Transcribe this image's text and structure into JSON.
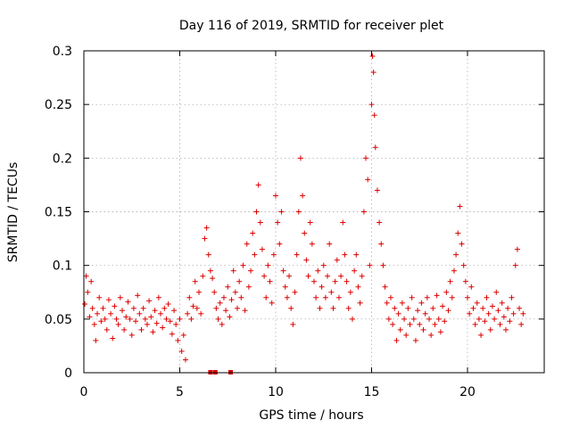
{
  "chart_data": {
    "type": "scatter",
    "title": "Day 116 of 2019, SRMTID for receiver plet",
    "xlabel": "GPS time / hours",
    "ylabel": "SRMTID / TECUs",
    "xlim": [
      0,
      24
    ],
    "ylim": [
      0,
      0.3
    ],
    "x_ticks": [
      0,
      5,
      10,
      15,
      20
    ],
    "x_tick_labels": [
      "0",
      "5",
      "10",
      "15",
      "20"
    ],
    "y_ticks": [
      0,
      0.05,
      0.1,
      0.15,
      0.2,
      0.25,
      0.3
    ],
    "y_tick_labels": [
      "0",
      "0.05",
      "0.1",
      "0.15",
      "0.2",
      "0.25",
      "0.3"
    ],
    "grid": true,
    "marker": "+",
    "color": "#dd0000",
    "series": [
      {
        "name": "SRMTID",
        "points": [
          [
            0.05,
            0.064
          ],
          [
            0.12,
            0.09
          ],
          [
            0.2,
            0.075
          ],
          [
            0.3,
            0.052
          ],
          [
            0.38,
            0.085
          ],
          [
            0.45,
            0.06
          ],
          [
            0.55,
            0.045
          ],
          [
            0.62,
            0.03
          ],
          [
            0.7,
            0.055
          ],
          [
            0.8,
            0.07
          ],
          [
            0.9,
            0.048
          ],
          [
            1.0,
            0.06
          ],
          [
            1.1,
            0.05
          ],
          [
            1.2,
            0.04
          ],
          [
            1.3,
            0.068
          ],
          [
            1.4,
            0.055
          ],
          [
            1.5,
            0.032
          ],
          [
            1.6,
            0.062
          ],
          [
            1.7,
            0.05
          ],
          [
            1.8,
            0.045
          ],
          [
            1.9,
            0.07
          ],
          [
            2.0,
            0.058
          ],
          [
            2.1,
            0.04
          ],
          [
            2.2,
            0.052
          ],
          [
            2.3,
            0.066
          ],
          [
            2.4,
            0.05
          ],
          [
            2.5,
            0.035
          ],
          [
            2.6,
            0.06
          ],
          [
            2.7,
            0.048
          ],
          [
            2.8,
            0.072
          ],
          [
            2.9,
            0.055
          ],
          [
            3.0,
            0.04
          ],
          [
            3.1,
            0.06
          ],
          [
            3.2,
            0.05
          ],
          [
            3.3,
            0.045
          ],
          [
            3.4,
            0.067
          ],
          [
            3.5,
            0.052
          ],
          [
            3.6,
            0.038
          ],
          [
            3.7,
            0.058
          ],
          [
            3.8,
            0.046
          ],
          [
            3.9,
            0.07
          ],
          [
            4.0,
            0.055
          ],
          [
            4.1,
            0.042
          ],
          [
            4.2,
            0.06
          ],
          [
            4.3,
            0.05
          ],
          [
            4.4,
            0.064
          ],
          [
            4.5,
            0.048
          ],
          [
            4.6,
            0.036
          ],
          [
            4.7,
            0.058
          ],
          [
            4.8,
            0.045
          ],
          [
            4.9,
            0.03
          ],
          [
            5.0,
            0.05
          ],
          [
            5.1,
            0.02
          ],
          [
            5.2,
            0.035
          ],
          [
            5.3,
            0.012
          ],
          [
            5.4,
            0.055
          ],
          [
            5.5,
            0.07
          ],
          [
            5.6,
            0.05
          ],
          [
            5.7,
            0.062
          ],
          [
            5.8,
            0.085
          ],
          [
            5.9,
            0.06
          ],
          [
            6.0,
            0.075
          ],
          [
            6.1,
            0.055
          ],
          [
            6.2,
            0.09
          ],
          [
            6.3,
            0.125
          ],
          [
            6.4,
            0.135
          ],
          [
            6.5,
            0.11
          ],
          [
            6.6,
            0.095
          ],
          [
            6.7,
            0.088
          ],
          [
            6.8,
            0.075
          ],
          [
            6.9,
            0.06
          ],
          [
            7.0,
            0.05
          ],
          [
            7.1,
            0.065
          ],
          [
            7.2,
            0.045
          ],
          [
            7.3,
            0.07
          ],
          [
            7.4,
            0.058
          ],
          [
            7.5,
            0.08
          ],
          [
            7.6,
            0.052
          ],
          [
            7.7,
            0.068
          ],
          [
            7.8,
            0.095
          ],
          [
            7.9,
            0.075
          ],
          [
            8.0,
            0.06
          ],
          [
            8.1,
            0.085
          ],
          [
            8.2,
            0.07
          ],
          [
            8.3,
            0.1
          ],
          [
            8.4,
            0.058
          ],
          [
            8.5,
            0.12
          ],
          [
            8.6,
            0.08
          ],
          [
            8.7,
            0.095
          ],
          [
            8.8,
            0.13
          ],
          [
            8.9,
            0.11
          ],
          [
            9.0,
            0.15
          ],
          [
            9.1,
            0.175
          ],
          [
            9.2,
            0.14
          ],
          [
            9.3,
            0.115
          ],
          [
            9.4,
            0.09
          ],
          [
            9.5,
            0.07
          ],
          [
            9.6,
            0.1
          ],
          [
            9.7,
            0.085
          ],
          [
            9.8,
            0.065
          ],
          [
            9.9,
            0.11
          ],
          [
            10.0,
            0.165
          ],
          [
            10.1,
            0.14
          ],
          [
            10.2,
            0.12
          ],
          [
            10.3,
            0.15
          ],
          [
            10.4,
            0.095
          ],
          [
            10.5,
            0.08
          ],
          [
            10.6,
            0.07
          ],
          [
            10.7,
            0.09
          ],
          [
            10.8,
            0.06
          ],
          [
            10.9,
            0.045
          ],
          [
            11.0,
            0.075
          ],
          [
            11.1,
            0.11
          ],
          [
            11.2,
            0.15
          ],
          [
            11.3,
            0.2
          ],
          [
            11.4,
            0.165
          ],
          [
            11.5,
            0.13
          ],
          [
            11.6,
            0.105
          ],
          [
            11.7,
            0.09
          ],
          [
            11.8,
            0.14
          ],
          [
            11.9,
            0.12
          ],
          [
            12.0,
            0.085
          ],
          [
            12.1,
            0.07
          ],
          [
            12.2,
            0.095
          ],
          [
            12.3,
            0.06
          ],
          [
            12.4,
            0.08
          ],
          [
            12.5,
            0.1
          ],
          [
            12.6,
            0.07
          ],
          [
            12.7,
            0.09
          ],
          [
            12.8,
            0.12
          ],
          [
            12.9,
            0.075
          ],
          [
            13.0,
            0.06
          ],
          [
            13.1,
            0.085
          ],
          [
            13.2,
            0.105
          ],
          [
            13.3,
            0.07
          ],
          [
            13.4,
            0.09
          ],
          [
            13.5,
            0.14
          ],
          [
            13.6,
            0.11
          ],
          [
            13.7,
            0.085
          ],
          [
            13.8,
            0.06
          ],
          [
            13.9,
            0.075
          ],
          [
            14.0,
            0.05
          ],
          [
            14.1,
            0.095
          ],
          [
            14.2,
            0.11
          ],
          [
            14.3,
            0.08
          ],
          [
            14.4,
            0.065
          ],
          [
            14.5,
            0.09
          ],
          [
            14.6,
            0.15
          ],
          [
            14.7,
            0.2
          ],
          [
            14.8,
            0.18
          ],
          [
            14.9,
            0.1
          ],
          [
            15.0,
            0.25
          ],
          [
            15.05,
            0.295
          ],
          [
            15.1,
            0.28
          ],
          [
            15.15,
            0.24
          ],
          [
            15.2,
            0.21
          ],
          [
            15.3,
            0.17
          ],
          [
            15.4,
            0.14
          ],
          [
            15.5,
            0.12
          ],
          [
            15.6,
            0.1
          ],
          [
            15.7,
            0.08
          ],
          [
            15.8,
            0.065
          ],
          [
            15.9,
            0.05
          ],
          [
            16.0,
            0.07
          ],
          [
            16.1,
            0.045
          ],
          [
            16.2,
            0.06
          ],
          [
            16.3,
            0.03
          ],
          [
            16.4,
            0.055
          ],
          [
            16.5,
            0.04
          ],
          [
            16.6,
            0.065
          ],
          [
            16.7,
            0.05
          ],
          [
            16.8,
            0.035
          ],
          [
            16.9,
            0.06
          ],
          [
            17.0,
            0.045
          ],
          [
            17.1,
            0.07
          ],
          [
            17.2,
            0.05
          ],
          [
            17.3,
            0.03
          ],
          [
            17.4,
            0.058
          ],
          [
            17.5,
            0.045
          ],
          [
            17.6,
            0.065
          ],
          [
            17.7,
            0.04
          ],
          [
            17.8,
            0.055
          ],
          [
            17.9,
            0.07
          ],
          [
            18.0,
            0.05
          ],
          [
            18.1,
            0.035
          ],
          [
            18.2,
            0.06
          ],
          [
            18.3,
            0.045
          ],
          [
            18.4,
            0.072
          ],
          [
            18.5,
            0.05
          ],
          [
            18.6,
            0.038
          ],
          [
            18.7,
            0.062
          ],
          [
            18.8,
            0.048
          ],
          [
            18.9,
            0.075
          ],
          [
            19.0,
            0.058
          ],
          [
            19.1,
            0.085
          ],
          [
            19.2,
            0.07
          ],
          [
            19.3,
            0.095
          ],
          [
            19.4,
            0.11
          ],
          [
            19.5,
            0.13
          ],
          [
            19.6,
            0.155
          ],
          [
            19.7,
            0.12
          ],
          [
            19.8,
            0.1
          ],
          [
            19.9,
            0.085
          ],
          [
            20.0,
            0.07
          ],
          [
            20.1,
            0.055
          ],
          [
            20.2,
            0.08
          ],
          [
            20.3,
            0.06
          ],
          [
            20.4,
            0.045
          ],
          [
            20.5,
            0.065
          ],
          [
            20.6,
            0.05
          ],
          [
            20.7,
            0.035
          ],
          [
            20.8,
            0.06
          ],
          [
            20.9,
            0.048
          ],
          [
            21.0,
            0.07
          ],
          [
            21.1,
            0.055
          ],
          [
            21.2,
            0.04
          ],
          [
            21.3,
            0.062
          ],
          [
            21.4,
            0.05
          ],
          [
            21.5,
            0.075
          ],
          [
            21.6,
            0.058
          ],
          [
            21.7,
            0.045
          ],
          [
            21.8,
            0.065
          ],
          [
            21.9,
            0.052
          ],
          [
            22.0,
            0.04
          ],
          [
            22.1,
            0.06
          ],
          [
            22.2,
            0.048
          ],
          [
            22.3,
            0.07
          ],
          [
            22.4,
            0.055
          ],
          [
            22.5,
            0.1
          ],
          [
            22.6,
            0.115
          ],
          [
            22.7,
            0.06
          ],
          [
            22.8,
            0.045
          ],
          [
            22.9,
            0.055
          ]
        ]
      }
    ],
    "gap_markers": [
      6.6,
      6.85,
      7.65
    ]
  }
}
